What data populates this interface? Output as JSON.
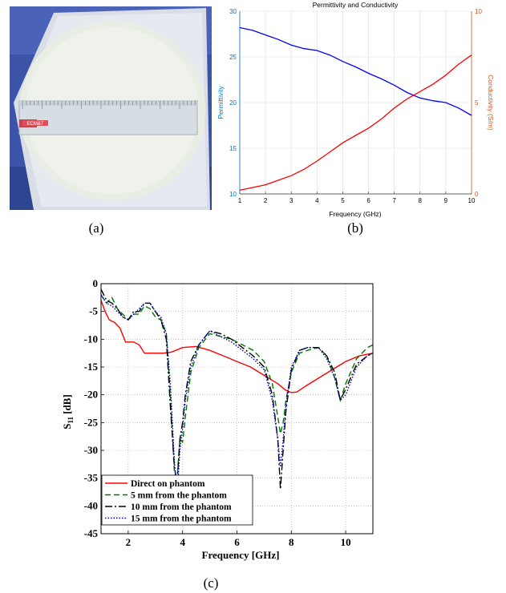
{
  "captions": {
    "a": "(a)",
    "b": "(b)",
    "c": "(c)"
  },
  "photo": {
    "ruler_label": "ECM&T"
  },
  "chart_data": [
    {
      "type": "line",
      "title": "Permittivity and Conductivity",
      "xlabel": "Frequency (GHz)",
      "ylabel_left": "Permittivity",
      "ylabel_right": "Conductivity (S/m)",
      "xlim": [
        1,
        10
      ],
      "ylim_left": [
        10,
        30
      ],
      "ylim_right": [
        0,
        10
      ],
      "x_ticks": [
        1,
        2,
        3,
        4,
        5,
        6,
        7,
        8,
        9,
        10
      ],
      "y_left_ticks": [
        10,
        15,
        20,
        25,
        30
      ],
      "y_right_ticks": [
        0,
        5,
        10
      ],
      "grid": true,
      "series": [
        {
          "axis": "left",
          "color": "#0000ff",
          "x": [
            1,
            1.5,
            2,
            2.5,
            3,
            3.5,
            4,
            4.5,
            5,
            5.5,
            6,
            6.5,
            7,
            7.5,
            8,
            8.5,
            9,
            9.5,
            10
          ],
          "y": [
            28.2,
            27.9,
            27.4,
            26.9,
            26.3,
            25.9,
            25.7,
            25.2,
            24.5,
            23.9,
            23.2,
            22.6,
            21.9,
            21.1,
            20.5,
            20.2,
            20.0,
            19.4,
            18.6
          ]
        },
        {
          "axis": "right",
          "color": "#ff0000",
          "x": [
            1,
            1.5,
            2,
            2.5,
            3,
            3.5,
            4,
            4.5,
            5,
            5.5,
            6,
            6.5,
            7,
            7.5,
            8,
            8.5,
            9,
            9.5,
            10
          ],
          "y": [
            0.2,
            0.35,
            0.5,
            0.75,
            1.0,
            1.35,
            1.8,
            2.3,
            2.8,
            3.2,
            3.6,
            4.1,
            4.7,
            5.2,
            5.6,
            6.0,
            6.5,
            7.1,
            7.6
          ]
        }
      ],
      "colors": {
        "left_axis": "#0072bd",
        "right_axis": "#d95319"
      }
    },
    {
      "type": "line",
      "xlabel": "Frequency [GHz]",
      "ylabel": "S11 [dB]",
      "ylabel_main": "S",
      "ylabel_sub": "11",
      "ylabel_unit": " [dB]",
      "xlim": [
        1,
        11
      ],
      "ylim": [
        -45,
        0
      ],
      "x_ticks": [
        2,
        4,
        6,
        8,
        10
      ],
      "y_ticks": [
        0,
        -5,
        -10,
        -15,
        -20,
        -25,
        -30,
        -35,
        -40,
        -45
      ],
      "grid": true,
      "legend_position": "bottom-left",
      "series": [
        {
          "name": "Direct on phantom",
          "color": "#ff0000",
          "dash": "",
          "x": [
            1,
            1.15,
            1.3,
            1.5,
            1.7,
            1.9,
            2.0,
            2.2,
            2.4,
            2.6,
            2.8,
            3.0,
            3.3,
            3.6,
            4.0,
            4.5,
            5.0,
            5.5,
            6.0,
            6.5,
            7.0,
            7.5,
            7.8,
            8.0,
            8.2,
            8.5,
            9.0,
            9.5,
            10.0,
            10.5,
            11.0
          ],
          "y": [
            -3,
            -5,
            -6.5,
            -7,
            -8,
            -10.5,
            -10.5,
            -10.5,
            -11,
            -12.5,
            -12.5,
            -12.5,
            -12.5,
            -12.3,
            -11.5,
            -11.3,
            -12,
            -13,
            -14,
            -15,
            -16.5,
            -18,
            -19.2,
            -19.6,
            -19.5,
            -18.5,
            -17,
            -15.5,
            -14,
            -13,
            -12.5
          ]
        },
        {
          "name": "5 mm from the phantom",
          "color": "#007700",
          "dash": "7,4",
          "x": [
            1,
            1.2,
            1.4,
            1.6,
            1.8,
            2.0,
            2.2,
            2.4,
            2.6,
            2.8,
            3.0,
            3.2,
            3.4,
            3.55,
            3.7,
            3.8,
            3.9,
            4.0,
            4.1,
            4.3,
            4.6,
            5.0,
            5.4,
            5.8,
            6.2,
            6.6,
            7.0,
            7.3,
            7.5,
            7.6,
            7.7,
            7.8,
            8.0,
            8.3,
            8.6,
            9.0,
            9.3,
            9.6,
            9.8,
            10.0,
            10.4,
            10.8,
            11.0
          ],
          "y": [
            -2,
            -3.5,
            -2.5,
            -4.5,
            -5.5,
            -6.5,
            -5.5,
            -5.5,
            -4,
            -4.5,
            -6,
            -6.5,
            -9,
            -20,
            -34,
            -35,
            -28,
            -28.5,
            -24,
            -16,
            -11.5,
            -9,
            -9.5,
            -10,
            -11,
            -12,
            -14,
            -18,
            -24,
            -27,
            -25,
            -21,
            -16,
            -12.5,
            -12,
            -11.5,
            -13,
            -17,
            -21,
            -18,
            -13.5,
            -11.5,
            -11
          ]
        },
        {
          "name": "10 mm from the phantom",
          "color": "#000000",
          "dash": "9,3,2,3",
          "x": [
            1,
            1.2,
            1.4,
            1.6,
            1.8,
            2.0,
            2.2,
            2.4,
            2.6,
            2.8,
            3.0,
            3.2,
            3.4,
            3.55,
            3.7,
            3.8,
            3.9,
            4.0,
            4.1,
            4.3,
            4.6,
            5.0,
            5.4,
            5.8,
            6.2,
            6.6,
            7.0,
            7.3,
            7.5,
            7.6,
            7.7,
            7.8,
            8.0,
            8.3,
            8.6,
            9.0,
            9.3,
            9.6,
            9.8,
            10.0,
            10.4,
            10.8,
            11.0
          ],
          "y": [
            -1,
            -3,
            -3.5,
            -4.5,
            -6,
            -6.5,
            -5,
            -5,
            -3.5,
            -3.5,
            -5,
            -6.5,
            -10,
            -22,
            -33,
            -36,
            -28,
            -25,
            -20,
            -14,
            -11,
            -8.5,
            -9,
            -10,
            -11.5,
            -13,
            -15,
            -20,
            -28,
            -37,
            -30,
            -23,
            -15.5,
            -12,
            -11.5,
            -11.5,
            -13,
            -16,
            -21,
            -19,
            -14.5,
            -13,
            -12.5
          ]
        },
        {
          "name": "15 mm from the phantom",
          "color": "#0000cc",
          "dash": "1.5,2",
          "x": [
            1,
            1.2,
            1.4,
            1.6,
            1.8,
            2.0,
            2.2,
            2.4,
            2.6,
            2.8,
            3.0,
            3.2,
            3.4,
            3.55,
            3.7,
            3.8,
            3.9,
            4.0,
            4.1,
            4.3,
            4.6,
            5.0,
            5.4,
            5.8,
            6.2,
            6.6,
            7.0,
            7.3,
            7.5,
            7.6,
            7.7,
            7.8,
            8.0,
            8.3,
            8.6,
            9.0,
            9.3,
            9.6,
            9.8,
            10.0,
            10.4,
            10.8,
            11.0
          ],
          "y": [
            -2,
            -3.5,
            -4,
            -5,
            -6,
            -6.5,
            -5.5,
            -4.5,
            -3.5,
            -3.5,
            -5,
            -6,
            -9,
            -18,
            -32,
            -38,
            -30,
            -26,
            -21,
            -15,
            -11,
            -8.5,
            -9.5,
            -10.5,
            -12,
            -13.5,
            -15.5,
            -21,
            -28,
            -33,
            -28,
            -22,
            -15,
            -12,
            -11.5,
            -11.5,
            -13.5,
            -17,
            -21,
            -20,
            -15,
            -13,
            -12.5
          ]
        }
      ]
    }
  ]
}
